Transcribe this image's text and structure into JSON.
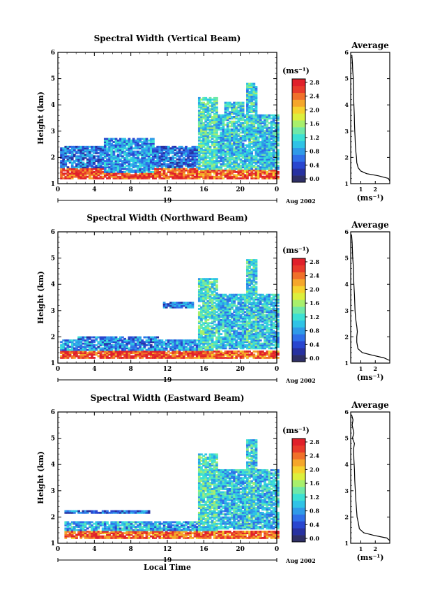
{
  "colors": {
    "colorbar": [
      "#2e2f66",
      "#2731a0",
      "#2946cf",
      "#2f6fe8",
      "#2f9ae8",
      "#2fc3e6",
      "#3ce0d4",
      "#6fe8a8",
      "#a8ef6c",
      "#dcef3c",
      "#f5d22e",
      "#f5a62a",
      "#f0702a",
      "#e83a2a",
      "#e0202a"
    ]
  },
  "chart_data": [
    {
      "type": "heatmap",
      "title": "Spectral Width (Vertical Beam)",
      "ylabel": "Height (km)",
      "xlabel": "",
      "xlim": [
        0,
        24
      ],
      "ylim": [
        1,
        6
      ],
      "x_ticks": [
        "0",
        "4",
        "8",
        "12",
        "16",
        "20",
        "0"
      ],
      "y_ticks": [
        "1",
        "2",
        "3",
        "4",
        "5",
        "6"
      ],
      "day_label": "19",
      "date_label": "Aug 2002",
      "colorbar": {
        "unit_label": "(ms⁻¹)",
        "ticks": [
          "0.0",
          "0.4",
          "0.8",
          "1.2",
          "1.6",
          "2.0",
          "2.4",
          "2.8"
        ],
        "range": [
          0,
          3.0
        ]
      },
      "features": [
        {
          "t0": 0.2,
          "t1": 15.2,
          "h0": 1.15,
          "h1": 1.55,
          "v": 2.7
        },
        {
          "t0": 0.2,
          "t1": 15.2,
          "h0": 1.55,
          "h1": 2.4,
          "v": 0.7
        },
        {
          "t0": 5.0,
          "t1": 10.5,
          "h0": 1.4,
          "h1": 2.7,
          "v": 0.9
        },
        {
          "t0": 15.3,
          "t1": 17.3,
          "h0": 1.3,
          "h1": 4.3,
          "v": 1.3
        },
        {
          "t0": 17.3,
          "t1": 24.0,
          "h0": 1.5,
          "h1": 3.6,
          "v": 1.1
        },
        {
          "t0": 18.2,
          "t1": 20.3,
          "h0": 1.5,
          "h1": 4.1,
          "v": 1.2
        },
        {
          "t0": 20.5,
          "t1": 21.6,
          "h0": 1.5,
          "h1": 4.8,
          "v": 1.2
        },
        {
          "t0": 15.3,
          "t1": 24.0,
          "h0": 1.15,
          "h1": 1.5,
          "v": 2.6
        }
      ],
      "average_profile": {
        "title": "Average",
        "xlabel": "(ms⁻¹)",
        "x_ticks": [
          "1",
          "2"
        ],
        "y_ticks": [
          "1",
          "2",
          "3",
          "4",
          "5",
          "6"
        ],
        "xlim": [
          0.3,
          3.0
        ],
        "ylim": [
          1,
          6
        ],
        "points": [
          [
            3.0,
            1.1
          ],
          [
            2.9,
            1.2
          ],
          [
            2.2,
            1.3
          ],
          [
            1.4,
            1.38
          ],
          [
            1.0,
            1.48
          ],
          [
            0.82,
            1.6
          ],
          [
            0.72,
            1.8
          ],
          [
            0.7,
            2.0
          ],
          [
            0.66,
            2.2
          ],
          [
            0.62,
            2.5
          ],
          [
            0.6,
            2.8
          ],
          [
            0.58,
            3.0
          ],
          [
            0.56,
            3.3
          ],
          [
            0.55,
            3.6
          ],
          [
            0.52,
            4.0
          ],
          [
            0.5,
            4.3
          ],
          [
            0.5,
            4.6
          ],
          [
            0.48,
            5.0
          ],
          [
            0.44,
            5.3
          ],
          [
            0.42,
            5.6
          ],
          [
            0.38,
            5.9
          ]
        ]
      }
    },
    {
      "type": "heatmap",
      "title": "Spectral Width (Northward Beam)",
      "ylabel": "Height (km)",
      "xlabel": "",
      "xlim": [
        0,
        24
      ],
      "ylim": [
        1,
        6
      ],
      "x_ticks": [
        "0",
        "4",
        "8",
        "12",
        "16",
        "20",
        "0"
      ],
      "y_ticks": [
        "1",
        "2",
        "3",
        "4",
        "5",
        "6"
      ],
      "day_label": "19",
      "date_label": "Aug 2002",
      "colorbar": {
        "unit_label": "(ms⁻¹)",
        "ticks": [
          "0.0",
          "0.4",
          "0.8",
          "1.2",
          "1.6",
          "2.0",
          "2.4",
          "2.8"
        ],
        "range": [
          0,
          3.0
        ]
      },
      "features": [
        {
          "t0": 0.2,
          "t1": 15.2,
          "h0": 1.15,
          "h1": 1.45,
          "v": 2.7
        },
        {
          "t0": 0.2,
          "t1": 15.2,
          "h0": 1.45,
          "h1": 1.85,
          "v": 0.9
        },
        {
          "t0": 2.0,
          "t1": 11.0,
          "h0": 1.6,
          "h1": 2.0,
          "v": 0.8
        },
        {
          "t0": 11.5,
          "t1": 14.8,
          "h0": 3.1,
          "h1": 3.3,
          "v": 0.7
        },
        {
          "t0": 15.3,
          "t1": 17.3,
          "h0": 1.3,
          "h1": 4.2,
          "v": 1.3
        },
        {
          "t0": 17.3,
          "t1": 24.0,
          "h0": 1.5,
          "h1": 3.6,
          "v": 1.1
        },
        {
          "t0": 20.5,
          "t1": 21.6,
          "h0": 1.5,
          "h1": 4.9,
          "v": 1.2
        },
        {
          "t0": 15.3,
          "t1": 24.0,
          "h0": 1.15,
          "h1": 1.45,
          "v": 2.6
        }
      ],
      "average_profile": {
        "title": "Average",
        "xlabel": "(ms⁻¹)",
        "x_ticks": [
          "1",
          "2"
        ],
        "y_ticks": [
          "1",
          "2",
          "3",
          "4",
          "5",
          "6"
        ],
        "xlim": [
          0.3,
          3.0
        ],
        "ylim": [
          1,
          6
        ],
        "points": [
          [
            3.0,
            1.1
          ],
          [
            2.6,
            1.2
          ],
          [
            1.8,
            1.3
          ],
          [
            1.1,
            1.4
          ],
          [
            0.8,
            1.55
          ],
          [
            0.72,
            1.8
          ],
          [
            0.72,
            2.0
          ],
          [
            0.76,
            2.2
          ],
          [
            0.72,
            2.4
          ],
          [
            0.64,
            2.7
          ],
          [
            0.6,
            3.0
          ],
          [
            0.58,
            3.3
          ],
          [
            0.56,
            3.6
          ],
          [
            0.52,
            4.0
          ],
          [
            0.5,
            4.3
          ],
          [
            0.48,
            4.7
          ],
          [
            0.44,
            5.0
          ],
          [
            0.42,
            5.3
          ],
          [
            0.4,
            5.6
          ],
          [
            0.36,
            5.9
          ]
        ]
      }
    },
    {
      "type": "heatmap",
      "title": "Spectral Width (Eastward Beam)",
      "ylabel": "Height (km)",
      "xlabel": "Local Time",
      "xlim": [
        0,
        24
      ],
      "ylim": [
        1,
        6
      ],
      "x_ticks": [
        "0",
        "4",
        "8",
        "12",
        "16",
        "20",
        "0"
      ],
      "y_ticks": [
        "1",
        "2",
        "3",
        "4",
        "5",
        "6"
      ],
      "day_label": "19",
      "date_label": "Aug 2002",
      "colorbar": {
        "unit_label": "(ms⁻¹)",
        "ticks": [
          "0.0",
          "0.4",
          "0.8",
          "1.2",
          "1.6",
          "2.0",
          "2.4",
          "2.8"
        ],
        "range": [
          0,
          3.0
        ]
      },
      "features": [
        {
          "t0": 0.5,
          "t1": 15.2,
          "h0": 1.15,
          "h1": 1.45,
          "v": 2.6
        },
        {
          "t0": 0.5,
          "t1": 15.2,
          "h0": 1.45,
          "h1": 1.8,
          "v": 1.0
        },
        {
          "t0": 0.5,
          "t1": 10.0,
          "h0": 2.1,
          "h1": 2.25,
          "v": 0.7
        },
        {
          "t0": 15.3,
          "t1": 17.3,
          "h0": 1.3,
          "h1": 4.4,
          "v": 1.3
        },
        {
          "t0": 17.3,
          "t1": 24.0,
          "h0": 1.5,
          "h1": 3.8,
          "v": 1.1
        },
        {
          "t0": 20.5,
          "t1": 21.6,
          "h0": 1.5,
          "h1": 4.9,
          "v": 1.2
        },
        {
          "t0": 15.3,
          "t1": 24.0,
          "h0": 1.15,
          "h1": 1.45,
          "v": 2.6
        }
      ],
      "average_profile": {
        "title": "Average",
        "xlabel": "(ms⁻¹)",
        "x_ticks": [
          "1",
          "2"
        ],
        "y_ticks": [
          "1",
          "2",
          "3",
          "4",
          "5",
          "6"
        ],
        "xlim": [
          0.3,
          3.0
        ],
        "ylim": [
          1,
          6
        ],
        "points": [
          [
            3.0,
            1.1
          ],
          [
            2.8,
            1.2
          ],
          [
            1.9,
            1.3
          ],
          [
            1.2,
            1.4
          ],
          [
            0.9,
            1.55
          ],
          [
            0.82,
            1.8
          ],
          [
            0.74,
            2.0
          ],
          [
            0.7,
            2.3
          ],
          [
            0.66,
            2.6
          ],
          [
            0.62,
            3.0
          ],
          [
            0.58,
            3.4
          ],
          [
            0.56,
            3.8
          ],
          [
            0.52,
            4.2
          ],
          [
            0.5,
            4.6
          ],
          [
            0.56,
            4.8
          ],
          [
            0.42,
            5.0
          ],
          [
            0.52,
            5.2
          ],
          [
            0.4,
            5.5
          ],
          [
            0.46,
            5.7
          ],
          [
            0.36,
            5.9
          ]
        ]
      }
    }
  ]
}
